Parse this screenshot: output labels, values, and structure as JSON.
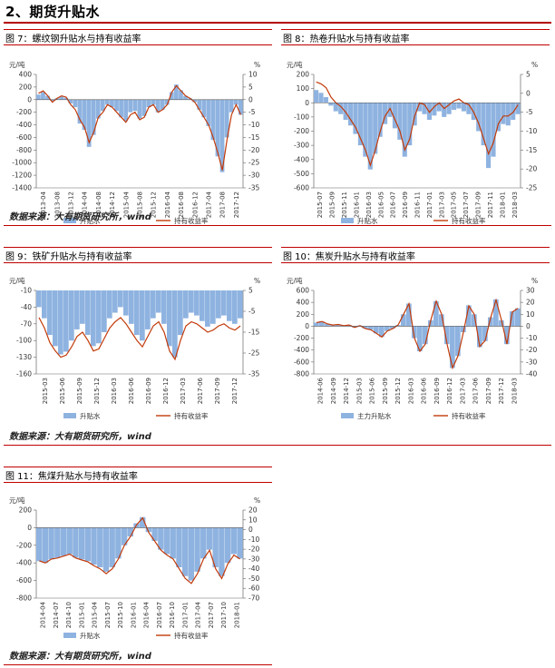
{
  "section": {
    "title": "2、期货升贴水"
  },
  "source_text": "数据来源：大有期货研究所，wind",
  "colors": {
    "bar": "#8fb3e0",
    "line": "#c23a0a",
    "rule": "#c00000"
  },
  "chart_data": [
    {
      "id": "fig7",
      "type": "bar+line",
      "title": "图 7：螺纹钢升贴水与持有收益率",
      "ylabel_left": "元/吨",
      "ylabel_right": "%",
      "ylim_left": [
        -1400,
        400
      ],
      "ylim_right": [
        -35,
        10
      ],
      "yticks_left": [
        400,
        200,
        0,
        -200,
        -400,
        -600,
        -800,
        -1000,
        -1200,
        -1400
      ],
      "yticks_right": [
        10,
        5,
        0,
        -5,
        -10,
        -15,
        -20,
        -25,
        -30,
        -35
      ],
      "xticks": [
        "2013-04",
        "2013-08",
        "2013-12",
        "2014-04",
        "2014-08",
        "2014-12",
        "2015-04",
        "2015-08",
        "2015-12",
        "2016-04",
        "2016-08",
        "2016-12",
        "2017-04",
        "2017-08",
        "2017-12"
      ],
      "legend": [
        "升贴水",
        "持有收益率"
      ],
      "bar_series": [
        80,
        120,
        60,
        -20,
        20,
        50,
        30,
        -60,
        -120,
        -380,
        -480,
        -750,
        -560,
        -300,
        -180,
        -80,
        -120,
        -180,
        -280,
        -340,
        -200,
        -180,
        -300,
        -260,
        -120,
        -80,
        -200,
        -160,
        -80,
        120,
        240,
        150,
        60,
        20,
        -40,
        -160,
        -280,
        -420,
        -640,
        -900,
        -1150,
        -600,
        -200,
        -80,
        -240
      ],
      "line_series": [
        2.5,
        3.5,
        1.5,
        -1,
        0.5,
        1.5,
        1,
        -2,
        -4,
        -8,
        -11,
        -17,
        -13,
        -7,
        -5,
        -2,
        -3,
        -5,
        -7,
        -9,
        -6,
        -5,
        -8,
        -7,
        -3,
        -2,
        -5,
        -4,
        -2,
        3,
        5.5,
        3.5,
        1.5,
        0.5,
        -1,
        -4,
        -7,
        -10,
        -15,
        -21,
        -28,
        -16,
        -6,
        -2,
        -6
      ]
    },
    {
      "id": "fig8",
      "type": "bar+line",
      "title": "图 8：热卷升贴水与持有收益率",
      "ylabel_left": "元/吨",
      "ylabel_right": "%",
      "ylim_left": [
        -600,
        200
      ],
      "ylim_right": [
        -25,
        5
      ],
      "yticks_left": [
        200,
        100,
        0,
        -100,
        -200,
        -300,
        -400,
        -500,
        -600
      ],
      "yticks_right": [
        5,
        0,
        -5,
        -10,
        -15,
        -20,
        -25
      ],
      "xticks": [
        "2015-07",
        "2015-09",
        "2015-11",
        "2016-01",
        "2016-03",
        "2016-05",
        "2016-07",
        "2016-09",
        "2016-11",
        "2017-01",
        "2017-03",
        "2017-05",
        "2017-07",
        "2017-09",
        "2017-11",
        "2018-01",
        "2018-03"
      ],
      "legend": [
        "升贴水",
        "持有收益率"
      ],
      "bar_series": [
        90,
        70,
        40,
        -20,
        -60,
        -80,
        -120,
        -160,
        -220,
        -300,
        -380,
        -470,
        -360,
        -240,
        -150,
        -100,
        -180,
        -260,
        -380,
        -300,
        -160,
        -60,
        -80,
        -120,
        -90,
        -60,
        -100,
        -80,
        -50,
        -40,
        -60,
        -80,
        -120,
        -200,
        -300,
        -460,
        -380,
        -200,
        -150,
        -160,
        -120,
        -80
      ],
      "line_series": [
        3,
        2.5,
        1.5,
        -1,
        -2.5,
        -3.5,
        -5,
        -7,
        -9,
        -12,
        -15,
        -19,
        -15,
        -10,
        -6,
        -4,
        -7,
        -10,
        -15,
        -12,
        -6,
        -2.5,
        -3,
        -5,
        -3.5,
        -2.5,
        -4,
        -3,
        -2,
        -1.5,
        -2.5,
        -3,
        -5,
        -8,
        -12,
        -16,
        -13,
        -8,
        -6,
        -6,
        -5,
        -3
      ]
    },
    {
      "id": "fig9",
      "type": "bar+line",
      "title": "图 9：铁矿升贴水与持有收益率",
      "ylabel_left": "元/吨",
      "ylabel_right": "%",
      "ylim_left": [
        -160,
        -10
      ],
      "ylim_right": [
        -35,
        5
      ],
      "yticks_left": [
        -10,
        -40,
        -70,
        -100,
        -130,
        -160
      ],
      "yticks_right": [
        5,
        -5,
        -15,
        -25,
        -35
      ],
      "xticks": [
        "2015-03",
        "2015-06",
        "2015-09",
        "2015-12",
        "2016-03",
        "2016-06",
        "2016-09",
        "2016-12",
        "2017-03",
        "2017-06",
        "2017-09",
        "2017-12"
      ],
      "legend": [
        "升贴水",
        "持有收益率"
      ],
      "bar_series": [
        -40,
        -60,
        -90,
        -110,
        -125,
        -120,
        -100,
        -80,
        -70,
        -90,
        -110,
        -105,
        -85,
        -60,
        -50,
        -40,
        -55,
        -70,
        -90,
        -100,
        -80,
        -60,
        -50,
        -70,
        -110,
        -130,
        -90,
        -60,
        -50,
        -55,
        -65,
        -75,
        -70,
        -60,
        -55,
        -65,
        -70,
        -60
      ],
      "line_series": [
        -8,
        -13,
        -20,
        -24,
        -27,
        -26,
        -22,
        -17,
        -15,
        -19,
        -24,
        -23,
        -18,
        -13,
        -10,
        -8,
        -11,
        -15,
        -19,
        -22,
        -17,
        -12,
        -10,
        -15,
        -24,
        -28,
        -19,
        -12,
        -10,
        -11,
        -13,
        -15,
        -14,
        -12,
        -11,
        -13,
        -14,
        -12
      ]
    },
    {
      "id": "fig10",
      "type": "bar+line",
      "title": "图 10：焦炭升贴水与持有收益率",
      "ylabel_left": "元/吨",
      "ylabel_right": "%",
      "ylim_left": [
        -800,
        600
      ],
      "ylim_right": [
        -40,
        30
      ],
      "yticks_left": [
        600,
        400,
        200,
        0,
        -200,
        -400,
        -600,
        -800
      ],
      "yticks_right": [
        30,
        20,
        10,
        0,
        -10,
        -20,
        -30,
        -40
      ],
      "xticks": [
        "2014-06",
        "2014-09",
        "2014-12",
        "2015-03",
        "2015-06",
        "2015-09",
        "2015-12",
        "2016-03",
        "2016-06",
        "2016-09",
        "2016-12",
        "2017-03",
        "2017-06",
        "2017-09",
        "2017-12",
        "2018-03"
      ],
      "legend": [
        "主力升贴水",
        "持有收益率"
      ],
      "bar_series": [
        60,
        80,
        40,
        20,
        30,
        10,
        20,
        -20,
        10,
        -40,
        -60,
        -120,
        -180,
        -80,
        -40,
        20,
        200,
        380,
        -200,
        -420,
        -300,
        100,
        420,
        200,
        -300,
        -700,
        -500,
        -100,
        350,
        200,
        -350,
        -250,
        150,
        450,
        100,
        -300,
        250,
        300
      ],
      "line_series": [
        3,
        4,
        2,
        1,
        1.5,
        0.5,
        1,
        -1,
        0.5,
        -2,
        -3,
        -6,
        -9,
        -4,
        -2,
        1,
        10,
        19,
        -10,
        -21,
        -15,
        5,
        21,
        10,
        -15,
        -35,
        -25,
        -5,
        17,
        10,
        -17,
        -12,
        7,
        22,
        5,
        -15,
        12,
        15
      ]
    },
    {
      "id": "fig11",
      "type": "bar+line",
      "title": "图 11：焦煤升贴水与持有收益率",
      "ylabel_left": "元/吨",
      "ylabel_right": "%",
      "ylim_left": [
        -800,
        200
      ],
      "ylim_right": [
        -70,
        20
      ],
      "yticks_left": [
        200,
        0,
        -200,
        -400,
        -600,
        -800
      ],
      "yticks_right": [
        20,
        10,
        0,
        -10,
        -20,
        -30,
        -40,
        -50,
        -60,
        -70
      ],
      "xticks": [
        "2014-04",
        "2014-07",
        "2014-10",
        "2015-01",
        "2015-04",
        "2015-07",
        "2015-10",
        "2016-01",
        "2016-04",
        "2016-07",
        "2016-10",
        "2017-01",
        "2017-04",
        "2017-07",
        "2017-10",
        "2018-01"
      ],
      "legend": [
        "升贴水",
        "持有收益率"
      ],
      "bar_series": [
        -380,
        -400,
        -360,
        -340,
        -320,
        -300,
        -340,
        -360,
        -380,
        -420,
        -450,
        -500,
        -450,
        -350,
        -200,
        -100,
        50,
        120,
        -50,
        -150,
        -250,
        -300,
        -350,
        -450,
        -550,
        -600,
        -500,
        -350,
        -250,
        -450,
        -550,
        -400,
        -300,
        -350
      ],
      "line_series": [
        -32,
        -34,
        -30,
        -29,
        -27,
        -25,
        -29,
        -31,
        -33,
        -37,
        -40,
        -45,
        -40,
        -30,
        -16,
        -7,
        5,
        12,
        -3,
        -12,
        -21,
        -26,
        -30,
        -40,
        -50,
        -55,
        -45,
        -30,
        -21,
        -40,
        -50,
        -35,
        -26,
        -30
      ]
    }
  ]
}
